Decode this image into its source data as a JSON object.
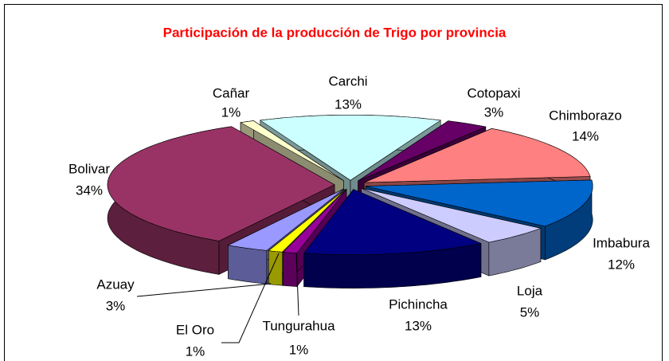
{
  "chart_data": {
    "type": "pie",
    "title": "Participación de la producción de Trigo por provincia",
    "categories": [
      "Carchi",
      "Cotopaxi",
      "Chimborazo",
      "Imbabura",
      "Loja",
      "Pichincha",
      "Tungurahua",
      "El Oro",
      "Azuay",
      "Bolivar",
      "Cañar"
    ],
    "values": [
      13,
      3,
      14,
      12,
      5,
      13,
      1,
      1,
      3,
      34,
      1
    ],
    "value_labels": [
      "13%",
      "3%",
      "14%",
      "12%",
      "5%",
      "13%",
      "1%",
      "1%",
      "3%",
      "34%",
      "1%"
    ],
    "colors": [
      "#ccffff",
      "#660066",
      "#ff8080",
      "#0066cc",
      "#ccccff",
      "#000080",
      "#990099",
      "#ffff00",
      "#9999ff",
      "#993366",
      "#ffffcc"
    ]
  }
}
